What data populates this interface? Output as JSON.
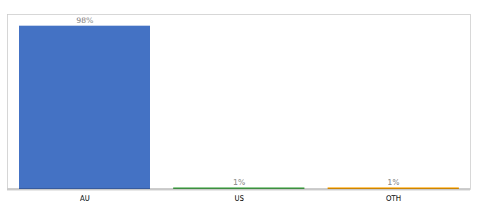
{
  "chart_data": {
    "type": "bar",
    "categories": [
      "AU",
      "US",
      "OTH"
    ],
    "values": [
      98,
      1,
      1
    ],
    "value_labels": [
      "98%",
      "1%",
      "1%"
    ],
    "colors": [
      "#4472c4",
      "#4caf50",
      "#ffa500"
    ],
    "ylim": [
      0,
      105
    ],
    "data_labels": true,
    "tick_labels": "x",
    "grid": false
  }
}
